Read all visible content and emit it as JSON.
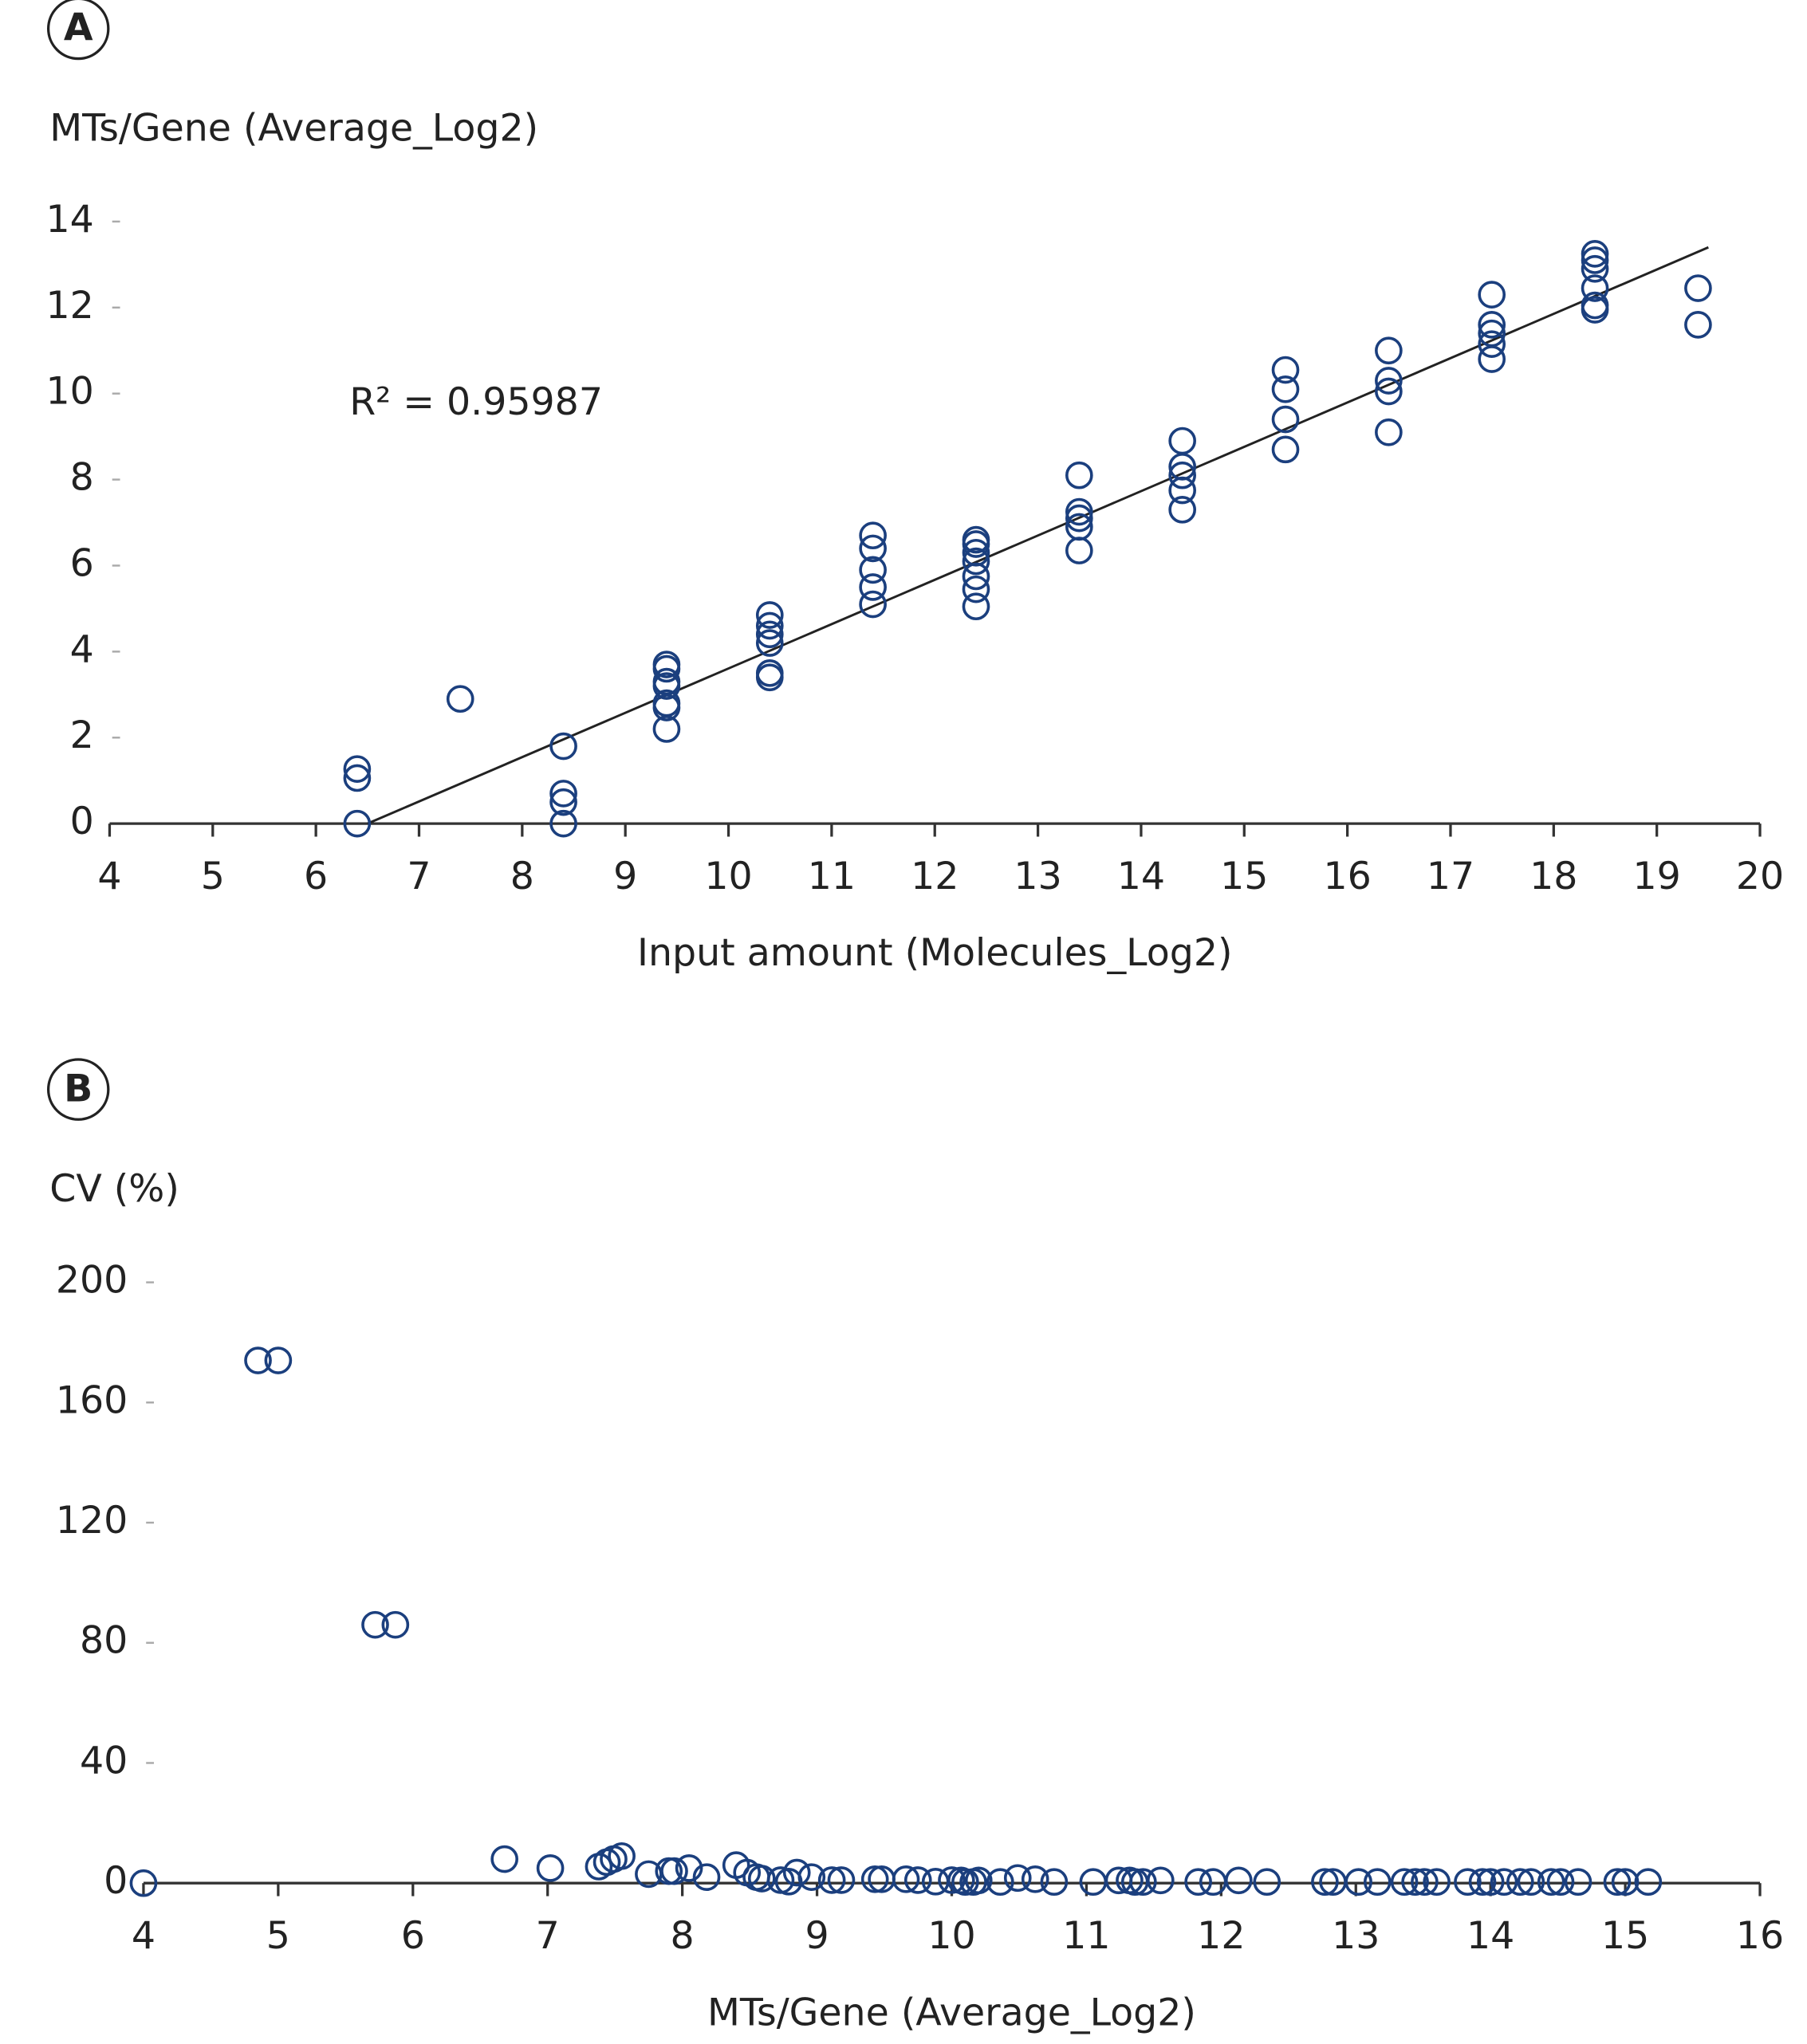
{
  "chart_data": [
    {
      "type": "scatter",
      "panel_label": "A",
      "y_label": "MTs/Gene (Average_Log2)",
      "x_label": "Input amount (Molecules_Log2)",
      "annotation": "R² = 0.95987",
      "color": "#1b3f7e",
      "x": [
        6.4,
        6.4,
        6.4,
        7.4,
        8.4,
        8.4,
        8.4,
        8.4,
        9.4,
        9.4,
        9.4,
        9.4,
        9.4,
        9.4,
        9.4,
        10.4,
        10.4,
        10.4,
        10.4,
        10.4,
        10.4,
        11.4,
        11.4,
        11.4,
        11.4,
        11.4,
        12.4,
        12.4,
        12.4,
        12.4,
        12.4,
        12.4,
        12.4,
        13.4,
        13.4,
        13.4,
        13.4,
        13.4,
        14.4,
        14.4,
        14.4,
        14.4,
        14.4,
        15.4,
        15.4,
        15.4,
        15.4,
        16.4,
        16.4,
        16.4,
        16.4,
        17.4,
        17.4,
        17.4,
        17.4,
        17.4,
        18.4,
        18.4,
        18.4,
        18.4,
        18.4,
        18.4,
        19.4,
        19.4
      ],
      "y": [
        1.27,
        1.06,
        0,
        2.9,
        1.8,
        0.7,
        0.5,
        0,
        3.7,
        3.6,
        3.3,
        3.2,
        2.8,
        2.7,
        2.2,
        4.85,
        4.6,
        4.4,
        4.2,
        3.5,
        3.4,
        6.7,
        6.4,
        5.9,
        5.5,
        5.1,
        6.6,
        6.5,
        6.3,
        6.1,
        5.75,
        5.45,
        5.05,
        8.1,
        7.25,
        7.1,
        6.9,
        6.35,
        8.9,
        8.3,
        8.1,
        7.75,
        7.3,
        10.55,
        10.1,
        9.4,
        8.7,
        11.0,
        10.3,
        10.05,
        9.1,
        12.3,
        11.6,
        11.4,
        11.15,
        10.8,
        13.25,
        13.1,
        12.9,
        12.45,
        12.05,
        11.95,
        12.45,
        11.6
      ],
      "trendline": {
        "x": [
          6.5,
          19.5
        ],
        "y": [
          0,
          13.4
        ]
      },
      "xlim": [
        4,
        20
      ],
      "xticks": [
        4,
        5,
        6,
        7,
        8,
        9,
        10,
        11,
        12,
        13,
        14,
        15,
        16,
        17,
        18,
        19,
        20
      ],
      "ylim": [
        0,
        14
      ],
      "yticks": [
        0,
        2,
        4,
        6,
        8,
        10,
        12,
        14
      ]
    },
    {
      "type": "scatter",
      "panel_label": "B",
      "y_label": "CV (%)",
      "x_label": "MTs/Gene (Average_Log2)",
      "color": "#1b3f7e",
      "x": [
        4.0,
        4.85,
        5.0,
        5.72,
        5.87,
        6.68,
        7.02,
        7.38,
        7.44,
        7.49,
        7.55,
        7.75,
        7.9,
        7.94,
        8.05,
        8.18,
        8.4,
        8.48,
        8.55,
        8.59,
        8.73,
        8.79,
        8.85,
        8.96,
        9.11,
        9.18,
        9.43,
        9.48,
        9.66,
        9.75,
        9.88,
        10.0,
        10.07,
        10.1,
        10.16,
        10.2,
        10.36,
        10.49,
        10.62,
        10.76,
        11.05,
        11.24,
        11.32,
        11.36,
        11.42,
        11.55,
        11.83,
        11.94,
        12.13,
        12.34,
        12.77,
        12.83,
        13.02,
        13.16,
        13.36,
        13.44,
        13.51,
        13.6,
        13.83,
        13.94,
        14.0,
        14.1,
        14.22,
        14.3,
        14.45,
        14.52,
        14.65,
        14.94,
        15.0,
        15.17
      ],
      "y": [
        0,
        174,
        174,
        86,
        86,
        8,
        5,
        5.5,
        7,
        8,
        9,
        3,
        4,
        4,
        5,
        2,
        6,
        3.5,
        2,
        1.5,
        1,
        0.5,
        3.5,
        2,
        1,
        1,
        1.3,
        1.3,
        1.3,
        1,
        0.5,
        1,
        0.9,
        0.4,
        0.4,
        0.9,
        0.4,
        1.7,
        1.3,
        0.4,
        0.4,
        0.9,
        0.9,
        0.4,
        0.4,
        0.9,
        0.4,
        0.4,
        0.9,
        0.4,
        0.4,
        0.4,
        0.4,
        0.4,
        0.4,
        0.4,
        0.4,
        0.4,
        0.4,
        0.4,
        0.4,
        0.4,
        0.4,
        0.4,
        0.4,
        0.4,
        0.4,
        0.4,
        0.4,
        0.4
      ],
      "xlim": [
        4,
        16
      ],
      "xticks": [
        4,
        5,
        6,
        7,
        8,
        9,
        10,
        11,
        12,
        13,
        14,
        15,
        16
      ],
      "ylim": [
        0,
        200
      ],
      "yticks": [
        0,
        40,
        80,
        120,
        160,
        200
      ]
    }
  ]
}
